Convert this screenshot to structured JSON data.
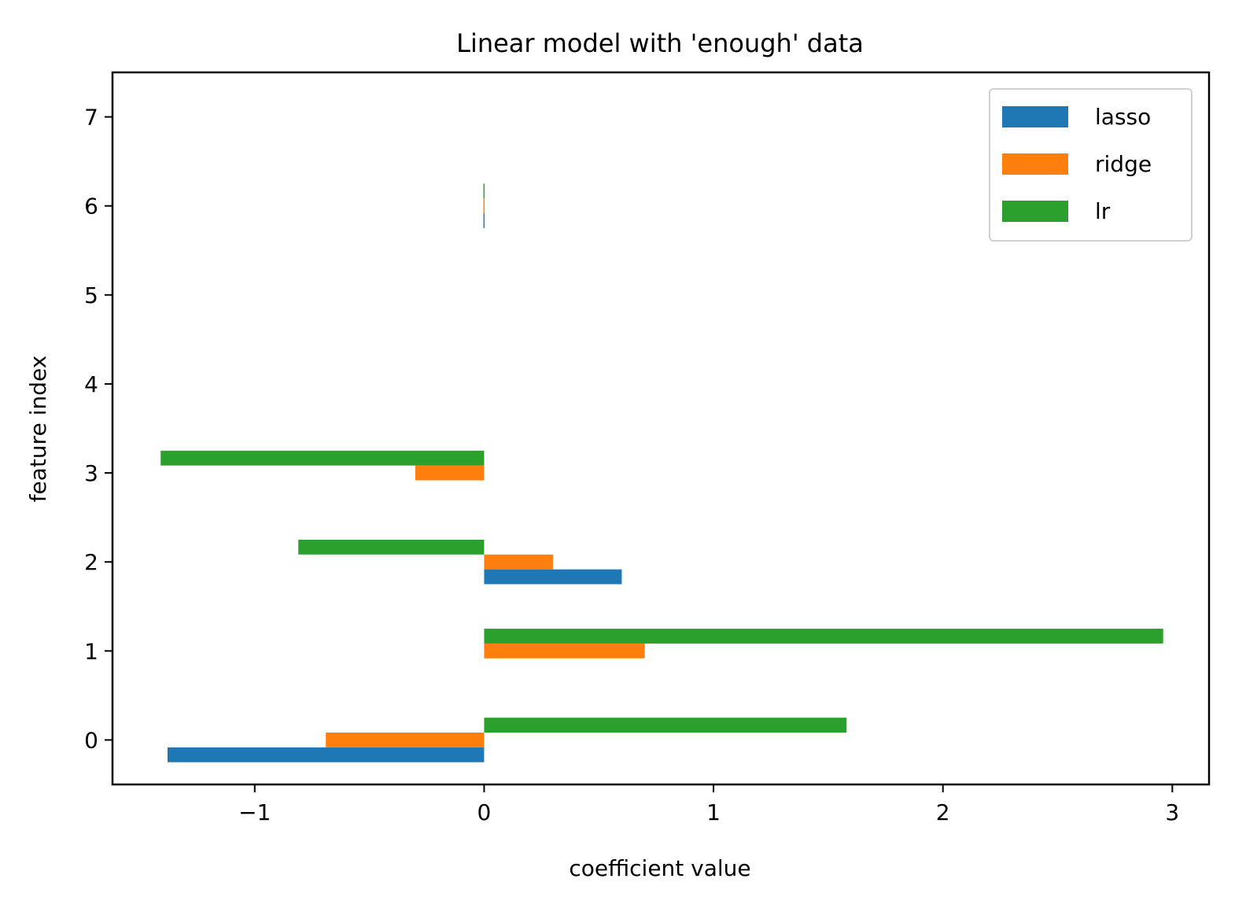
{
  "chart_data": {
    "type": "bar",
    "orientation": "horizontal",
    "title": "Linear model with 'enough' data",
    "xlabel": "coefficient value",
    "ylabel": "feature index",
    "xlim": [
      -1.62,
      3.16
    ],
    "ylim": [
      -0.5,
      7.5
    ],
    "xticks": [
      -1,
      0,
      1,
      2,
      3
    ],
    "xtick_labels": [
      "−1",
      "0",
      "1",
      "2",
      "3"
    ],
    "yticks": [
      0,
      1,
      2,
      3,
      4,
      5,
      6,
      7
    ],
    "ytick_labels": [
      "0",
      "1",
      "2",
      "3",
      "4",
      "5",
      "6",
      "7"
    ],
    "grid": false,
    "legend_position": "top-right",
    "categories": [
      0,
      1,
      2,
      3,
      4,
      5,
      6,
      7
    ],
    "series": [
      {
        "name": "lasso",
        "color": "#1f77b4",
        "values": [
          -1.38,
          0.0,
          0.6,
          0.0,
          0.0,
          0.0,
          -0.003,
          0.0
        ]
      },
      {
        "name": "ridge",
        "color": "#ff7f0e",
        "values": [
          -0.69,
          0.7,
          0.3,
          -0.3,
          0.0,
          0.0,
          -0.003,
          0.0
        ]
      },
      {
        "name": "lr",
        "color": "#2ca02c",
        "values": [
          1.58,
          2.96,
          -0.81,
          -1.41,
          0.0,
          0.0,
          -0.003,
          0.0
        ]
      }
    ]
  }
}
